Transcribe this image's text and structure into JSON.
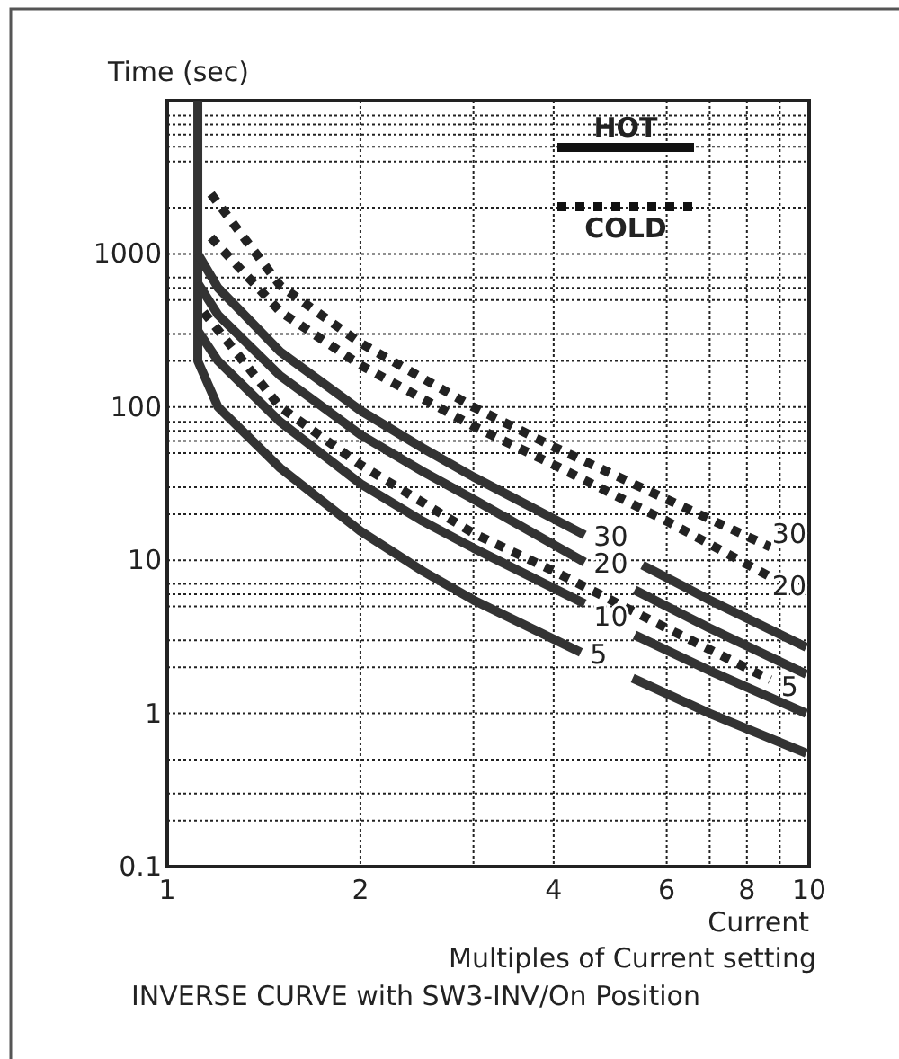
{
  "chart_data": {
    "type": "line",
    "title": "INVERSE CURVE with SW3-INV/On Position",
    "subtitle": "Multiples of Current setting",
    "xlabel": "Current",
    "ylabel": "Time (sec)",
    "log": "xy",
    "grid": true,
    "annotations": [
      "HOT",
      "COLD"
    ],
    "xlim": [
      1,
      10
    ],
    "ylim": [
      0.1,
      10000
    ],
    "xticks": [
      1,
      2,
      {
        "value": 3,
        "label": null
      },
      4,
      6,
      {
        "value": 7,
        "label": null
      },
      8,
      {
        "value": 9,
        "label": null
      },
      10
    ],
    "yticks": [
      0.1,
      {
        "value": 0.2,
        "label": null
      },
      {
        "value": 0.3,
        "label": null
      },
      {
        "value": 0.5,
        "label": null
      },
      1,
      {
        "value": 2,
        "label": null
      },
      {
        "value": 3,
        "label": null
      },
      {
        "value": 5,
        "label": null
      },
      {
        "value": 6,
        "label": null
      },
      {
        "value": 7,
        "label": null
      },
      10,
      {
        "value": 20,
        "label": null
      },
      {
        "value": 30,
        "label": null
      },
      {
        "value": 50,
        "label": null
      },
      {
        "value": 60,
        "label": null
      },
      {
        "value": 70,
        "label": null
      },
      {
        "value": 80,
        "label": null
      },
      100,
      {
        "value": 200,
        "label": null
      },
      {
        "value": 300,
        "label": null
      },
      {
        "value": 500,
        "label": null
      },
      {
        "value": 600,
        "label": null
      },
      {
        "value": 700,
        "label": null
      },
      1000,
      {
        "value": 2000,
        "label": null
      },
      {
        "value": 4000,
        "label": null
      },
      {
        "value": 5000,
        "label": null
      },
      {
        "value": 6000,
        "label": null
      },
      {
        "value": 7000,
        "label": null
      },
      {
        "value": 8000,
        "label": null
      },
      {
        "value": 10000,
        "label": null
      }
    ],
    "series": [
      {
        "name": "5",
        "color": "#333333",
        "line_style": "solid",
        "x": [
          1.116,
          1.116,
          1.2,
          1.5,
          2,
          2.5,
          3,
          4.41
        ],
        "values": [
          10000,
          200,
          100,
          40,
          15.5,
          8.5,
          5.5,
          2.5
        ]
      },
      {
        "color": "#333333",
        "line_style": "solid",
        "x": [
          5.31,
          7,
          9.9
        ],
        "values": [
          1.7,
          1.0,
          0.55
        ]
      },
      {
        "name": "10",
        "color": "#333333",
        "line_style": "solid",
        "x": [
          1.116,
          1.2,
          1.5,
          2,
          2.5,
          3,
          4.47
        ],
        "values": [
          316,
          200,
          80,
          31.6,
          18,
          12,
          5.2
        ]
      },
      {
        "color": "#333333",
        "line_style": "solid",
        "x": [
          5.35,
          7,
          9.9
        ],
        "values": [
          3.25,
          1.9,
          1.0
        ]
      },
      {
        "name": "20",
        "color": "#333333",
        "line_style": "solid",
        "x": [
          1.116,
          1.2,
          1.5,
          2,
          2.5,
          3,
          4.47
        ],
        "values": [
          645,
          400,
          160,
          66,
          38,
          25,
          9.7
        ]
      },
      {
        "color": "#333333",
        "line_style": "solid",
        "x": [
          5.35,
          7,
          9.9
        ],
        "values": [
          6.4,
          3.6,
          1.8
        ]
      },
      {
        "name": "30",
        "color": "#333333",
        "line_style": "solid",
        "x": [
          1.116,
          1.2,
          1.5,
          2,
          2.5,
          3,
          4.47
        ],
        "values": [
          1000,
          600,
          230,
          95,
          54,
          35,
          14.6
        ]
      },
      {
        "color": "#333333",
        "line_style": "solid",
        "x": [
          5.5,
          7,
          9.9
        ],
        "values": [
          9.3,
          5.5,
          2.7
        ]
      },
      {
        "name": "5",
        "color": "#222222",
        "line_style": "dotted",
        "x": [
          1.14,
          1.5,
          2,
          3,
          4,
          6,
          8.7
        ],
        "values": [
          416,
          100,
          42,
          15,
          8.5,
          3.6,
          1.66
        ]
      },
      {
        "name": "20",
        "color": "#222222",
        "line_style": "dotted",
        "x": [
          1.17,
          1.5,
          2,
          3,
          4,
          6,
          8.7
        ],
        "values": [
          1280,
          420,
          188,
          75,
          42,
          18,
          7.8
        ]
      },
      {
        "name": "30",
        "color": "#222222",
        "line_style": "dotted",
        "x": [
          1.17,
          1.5,
          2,
          3,
          4,
          6,
          8.7
        ],
        "values": [
          2460,
          620,
          262,
          100,
          55,
          25,
          12.2
        ]
      }
    ]
  }
}
